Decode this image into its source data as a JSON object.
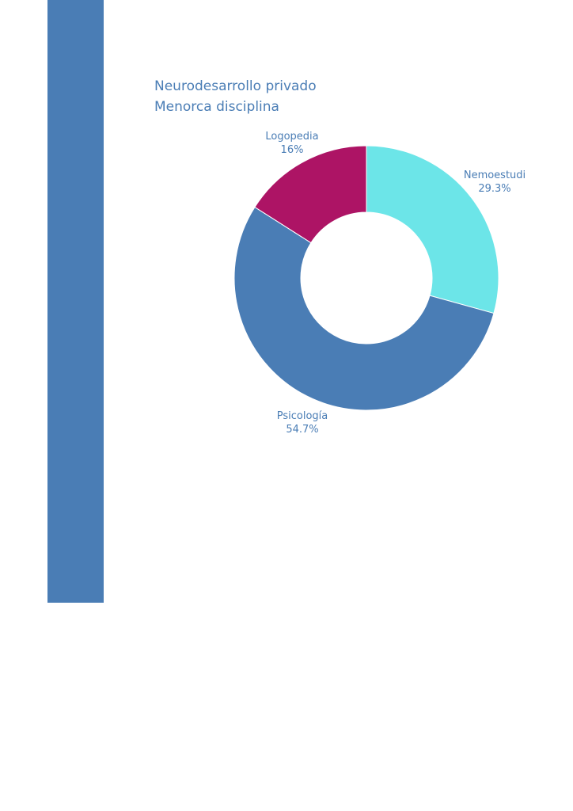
{
  "colors": {
    "accent": "#4a7db5",
    "label_text": "#4a7db5"
  },
  "chart_data": {
    "type": "pie",
    "donut": true,
    "title_lines": [
      "Neurodesarrollo privado",
      "Menorca disciplina"
    ],
    "slices": [
      {
        "label": "Nemoestudi",
        "value": 29.3,
        "display": "29.3%",
        "color": "#6ce5e8"
      },
      {
        "label": "Psicología",
        "value": 54.7,
        "display": "54.7%",
        "color": "#4a7db5"
      },
      {
        "label": "Logopedia",
        "value": 16,
        "display": "16%",
        "color": "#ad1465"
      }
    ],
    "legend": "none"
  }
}
